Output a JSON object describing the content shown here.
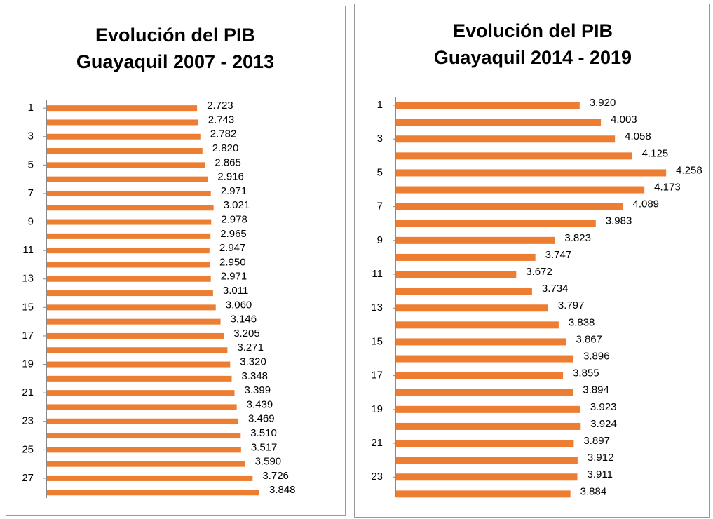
{
  "chart_data": [
    {
      "type": "bar",
      "orientation": "horizontal",
      "title": [
        "Evolución del PIB",
        "Guayaquil 2007 - 2013"
      ],
      "categories": [
        1,
        null,
        3,
        null,
        5,
        null,
        7,
        null,
        9,
        null,
        11,
        null,
        13,
        null,
        15,
        null,
        17,
        null,
        19,
        null,
        21,
        null,
        23,
        null,
        25,
        null,
        27,
        null
      ],
      "values": [
        2.723,
        2.743,
        2.782,
        2.82,
        2.865,
        2.916,
        2.971,
        3.021,
        2.978,
        2.965,
        2.947,
        2.95,
        2.971,
        3.011,
        3.06,
        3.146,
        3.205,
        3.271,
        3.32,
        3.348,
        3.399,
        3.439,
        3.469,
        3.51,
        3.517,
        3.59,
        3.726,
        3.848
      ],
      "value_labels": [
        "2.723",
        "2.743",
        "2.782",
        "2.820",
        "2.865",
        "2.916",
        "2.971",
        "3.021",
        "2.978",
        "2.965",
        "2.947",
        "2.950",
        "2.971",
        "3.011",
        "3.060",
        "3.146",
        "3.205",
        "3.271",
        "3.320",
        "3.348",
        "3.399",
        "3.439",
        "3.469",
        "3.510",
        "3.517",
        "3.590",
        "3.726",
        "3.848"
      ],
      "color": "#ed7d31",
      "xlim": [
        0,
        5
      ]
    },
    {
      "type": "bar",
      "orientation": "horizontal",
      "title": [
        "Evolución del PIB",
        "Guayaquil 2014 - 2019"
      ],
      "categories": [
        1,
        null,
        3,
        null,
        5,
        null,
        7,
        null,
        9,
        null,
        11,
        null,
        13,
        null,
        15,
        null,
        17,
        null,
        19,
        null,
        21,
        null,
        23,
        null
      ],
      "values": [
        3.92,
        4.003,
        4.058,
        4.125,
        4.258,
        4.173,
        4.089,
        3.983,
        3.823,
        3.747,
        3.672,
        3.734,
        3.797,
        3.838,
        3.867,
        3.896,
        3.855,
        3.894,
        3.923,
        3.924,
        3.897,
        3.912,
        3.911,
        3.884
      ],
      "value_labels": [
        "3.920",
        "4.003",
        "4.058",
        "4.125",
        "4.258",
        "4.173",
        "4.089",
        "3.983",
        "3.823",
        "3.747",
        "3.672",
        "3.734",
        "3.797",
        "3.838",
        "3.867",
        "3.896",
        "3.855",
        "3.894",
        "3.923",
        "3.924",
        "3.897",
        "3.912",
        "3.911",
        "3.884"
      ],
      "color": "#ed7d31",
      "xlim": [
        3.2,
        4.4
      ]
    }
  ]
}
